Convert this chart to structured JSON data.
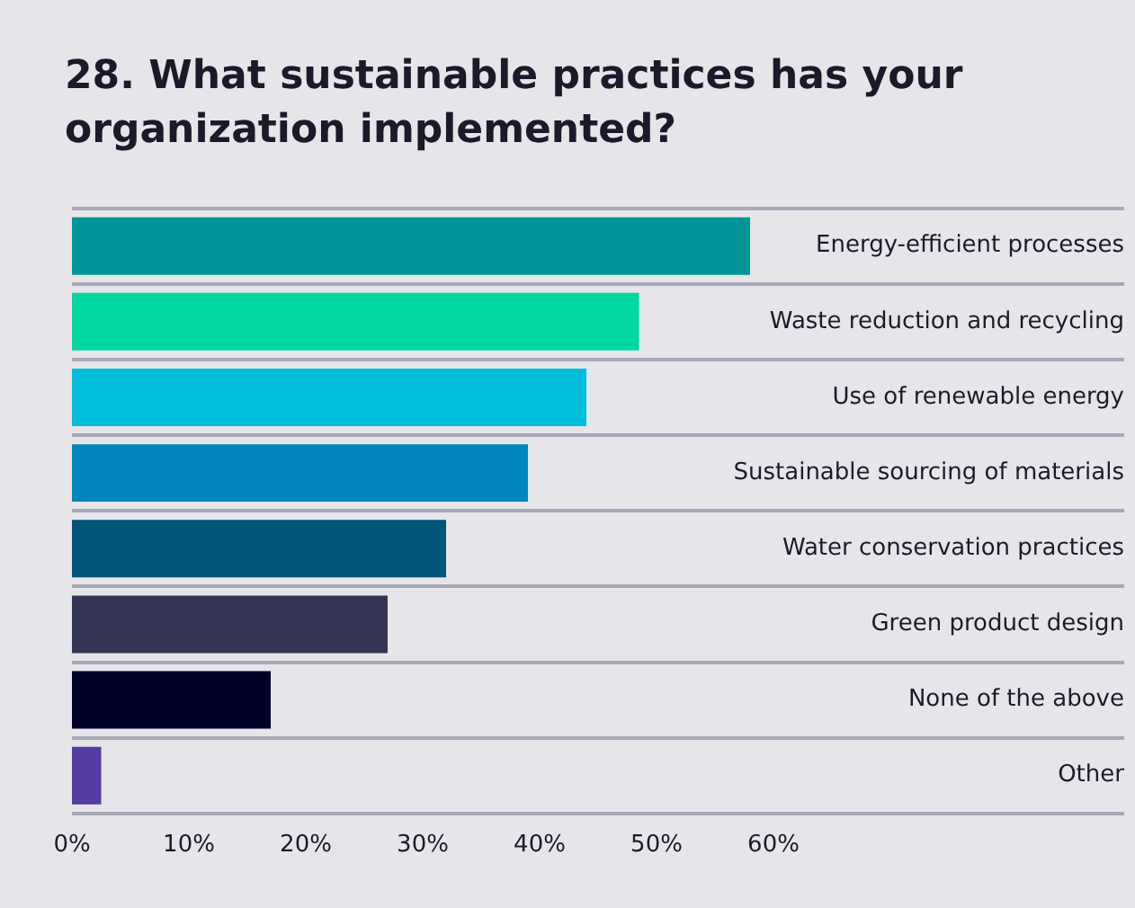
{
  "chart_data": {
    "type": "bar",
    "orientation": "horizontal",
    "title": "28. What sustainable practices has your organization implemented?",
    "categories": [
      "Energy-efficient processes",
      "Waste reduction and recycling",
      "Use of renewable energy",
      "Sustainable sourcing of materials",
      "Water conservation practices",
      "Green product design",
      "None of the above",
      "Other"
    ],
    "values": [
      58,
      48.5,
      44,
      39,
      32,
      27,
      17,
      2.5
    ],
    "colors": [
      "#009597",
      "#00d7a0",
      "#00bedc",
      "#0087be",
      "#005578",
      "#333353",
      "#000028",
      "#553ba3"
    ],
    "xlim": [
      0,
      90
    ],
    "xticks": [
      {
        "value": 0,
        "label": "0%"
      },
      {
        "value": 10,
        "label": "10%"
      },
      {
        "value": 20,
        "label": "20%"
      },
      {
        "value": 30,
        "label": "30%"
      },
      {
        "value": 40,
        "label": "40%"
      },
      {
        "value": 50,
        "label": "50%"
      },
      {
        "value": 60,
        "label": "60%"
      }
    ],
    "grid": "y",
    "legend": false
  }
}
